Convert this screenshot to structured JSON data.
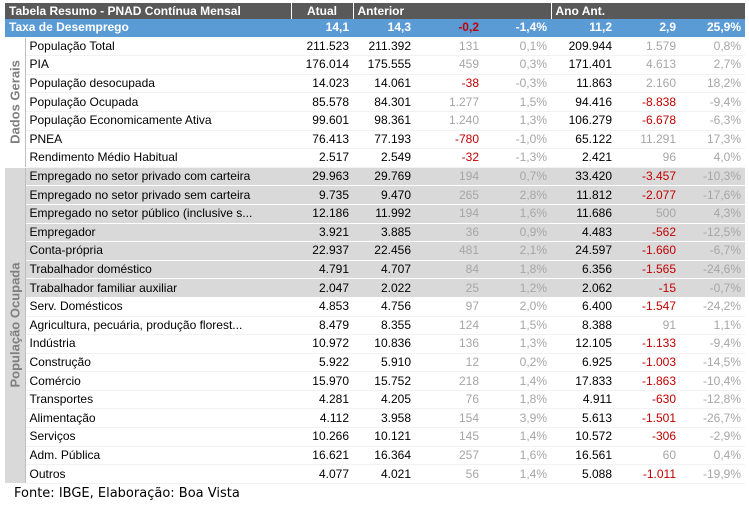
{
  "header": {
    "title": "Tabela Resumo - PNAD Contínua Mensal",
    "col_atual": "Atual",
    "col_anterior": "Anterior",
    "col_ano_ant": "Ano Ant."
  },
  "highlight": {
    "label": "Taxa de Desemprego",
    "atual": "14,1",
    "anterior": "14,3",
    "diff_abs": "-0,2",
    "diff_pct": "-1,4%",
    "ano_ant": "11,2",
    "diff_ano_abs": "2,9",
    "diff_ano_pct": "25,9%"
  },
  "groups": {
    "dados_gerais": "Dados Gerais",
    "populacao_ocupada": "População Ocupada"
  },
  "rows": [
    {
      "label": "População Total",
      "atual": "211.523",
      "anterior": "211.392",
      "d1": "131",
      "d1_neg": false,
      "p1": "0,1%",
      "ano": "209.944",
      "d2": "1.579",
      "d2_neg": false,
      "p2": "0,8%"
    },
    {
      "label": "PIA",
      "atual": "176.014",
      "anterior": "175.555",
      "d1": "459",
      "d1_neg": false,
      "p1": "0,3%",
      "ano": "171.401",
      "d2": "4.613",
      "d2_neg": false,
      "p2": "2,7%"
    },
    {
      "label": "População desocupada",
      "atual": "14.023",
      "anterior": "14.061",
      "d1": "-38",
      "d1_neg": true,
      "p1": "-0,3%",
      "ano": "11.863",
      "d2": "2.160",
      "d2_neg": false,
      "p2": "18,2%"
    },
    {
      "label": "População Ocupada",
      "atual": "85.578",
      "anterior": "84.301",
      "d1": "1.277",
      "d1_neg": false,
      "p1": "1,5%",
      "ano": "94.416",
      "d2": "-8.838",
      "d2_neg": true,
      "p2": "-9,4%"
    },
    {
      "label": "População Economicamente Ativa",
      "atual": "99.601",
      "anterior": "98.361",
      "d1": "1.240",
      "d1_neg": false,
      "p1": "1,3%",
      "ano": "106.279",
      "d2": "-6.678",
      "d2_neg": true,
      "p2": "-6,3%"
    },
    {
      "label": "PNEA",
      "atual": "76.413",
      "anterior": "77.193",
      "d1": "-780",
      "d1_neg": true,
      "p1": "-1,0%",
      "ano": "65.122",
      "d2": "11.291",
      "d2_neg": false,
      "p2": "17,3%"
    },
    {
      "label": "Rendimento Médio Habitual",
      "atual": "2.517",
      "anterior": "2.549",
      "d1": "-32",
      "d1_neg": true,
      "p1": "-1,3%",
      "ano": "2.421",
      "d2": "96",
      "d2_neg": false,
      "p2": "4,0%"
    },
    {
      "label": "Empregado no setor privado com carteira",
      "atual": "29.963",
      "anterior": "29.769",
      "d1": "194",
      "d1_neg": false,
      "p1": "0,7%",
      "ano": "33.420",
      "d2": "-3.457",
      "d2_neg": true,
      "p2": "-10,3%"
    },
    {
      "label": "Empregado no setor privado sem carteira",
      "atual": "9.735",
      "anterior": "9.470",
      "d1": "265",
      "d1_neg": false,
      "p1": "2,8%",
      "ano": "11.812",
      "d2": "-2.077",
      "d2_neg": true,
      "p2": "-17,6%"
    },
    {
      "label": "Empregado no setor público (inclusive s...",
      "atual": "12.186",
      "anterior": "11.992",
      "d1": "194",
      "d1_neg": false,
      "p1": "1,6%",
      "ano": "11.686",
      "d2": "500",
      "d2_neg": false,
      "p2": "4,3%"
    },
    {
      "label": "Empregador",
      "atual": "3.921",
      "anterior": "3.885",
      "d1": "36",
      "d1_neg": false,
      "p1": "0,9%",
      "ano": "4.483",
      "d2": "-562",
      "d2_neg": true,
      "p2": "-12,5%"
    },
    {
      "label": "Conta-própria",
      "atual": "22.937",
      "anterior": "22.456",
      "d1": "481",
      "d1_neg": false,
      "p1": "2,1%",
      "ano": "24.597",
      "d2": "-1.660",
      "d2_neg": true,
      "p2": "-6,7%"
    },
    {
      "label": "Trabalhador doméstico",
      "atual": "4.791",
      "anterior": "4.707",
      "d1": "84",
      "d1_neg": false,
      "p1": "1,8%",
      "ano": "6.356",
      "d2": "-1.565",
      "d2_neg": true,
      "p2": "-24,6%"
    },
    {
      "label": "Trabalhador familiar auxiliar",
      "atual": "2.047",
      "anterior": "2.022",
      "d1": "25",
      "d1_neg": false,
      "p1": "1,2%",
      "ano": "2.062",
      "d2": "-15",
      "d2_neg": true,
      "p2": "-0,7%"
    },
    {
      "label": "Serv. Domésticos",
      "atual": "4.853",
      "anterior": "4.756",
      "d1": "97",
      "d1_neg": false,
      "p1": "2,0%",
      "ano": "6.400",
      "d2": "-1.547",
      "d2_neg": true,
      "p2": "-24,2%"
    },
    {
      "label": "Agricultura, pecuária, produção florest...",
      "atual": "8.479",
      "anterior": "8.355",
      "d1": "124",
      "d1_neg": false,
      "p1": "1,5%",
      "ano": "8.388",
      "d2": "91",
      "d2_neg": false,
      "p2": "1,1%"
    },
    {
      "label": "Indústria",
      "atual": "10.972",
      "anterior": "10.836",
      "d1": "136",
      "d1_neg": false,
      "p1": "1,3%",
      "ano": "12.105",
      "d2": "-1.133",
      "d2_neg": true,
      "p2": "-9,4%"
    },
    {
      "label": "Construção",
      "atual": "5.922",
      "anterior": "5.910",
      "d1": "12",
      "d1_neg": false,
      "p1": "0,2%",
      "ano": "6.925",
      "d2": "-1.003",
      "d2_neg": true,
      "p2": "-14,5%"
    },
    {
      "label": "Comércio",
      "atual": "15.970",
      "anterior": "15.752",
      "d1": "218",
      "d1_neg": false,
      "p1": "1,4%",
      "ano": "17.833",
      "d2": "-1.863",
      "d2_neg": true,
      "p2": "-10,4%"
    },
    {
      "label": "Transportes",
      "atual": "4.281",
      "anterior": "4.205",
      "d1": "76",
      "d1_neg": false,
      "p1": "1,8%",
      "ano": "4.911",
      "d2": "-630",
      "d2_neg": true,
      "p2": "-12,8%"
    },
    {
      "label": "Alimentação",
      "atual": "4.112",
      "anterior": "3.958",
      "d1": "154",
      "d1_neg": false,
      "p1": "3,9%",
      "ano": "5.613",
      "d2": "-1.501",
      "d2_neg": true,
      "p2": "-26,7%"
    },
    {
      "label": "Serviços",
      "atual": "10.266",
      "anterior": "10.121",
      "d1": "145",
      "d1_neg": false,
      "p1": "1,4%",
      "ano": "10.572",
      "d2": "-306",
      "d2_neg": true,
      "p2": "-2,9%"
    },
    {
      "label": "Adm. Pública",
      "atual": "16.621",
      "anterior": "16.364",
      "d1": "257",
      "d1_neg": false,
      "p1": "1,6%",
      "ano": "16.561",
      "d2": "60",
      "d2_neg": false,
      "p2": "0,4%"
    },
    {
      "label": "Outros",
      "atual": "4.077",
      "anterior": "4.021",
      "d1": "56",
      "d1_neg": false,
      "p1": "1,4%",
      "ano": "5.088",
      "d2": "-1.011",
      "d2_neg": true,
      "p2": "-19,9%"
    }
  ],
  "footer": "Fonte: IBGE, Elaboração: Boa Vista"
}
